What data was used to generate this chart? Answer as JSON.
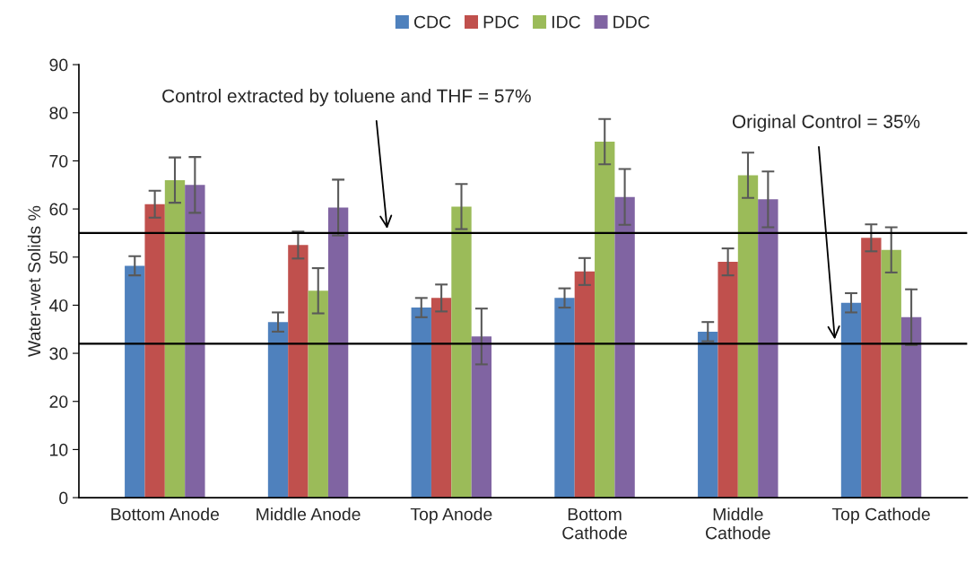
{
  "chart_data": {
    "type": "bar",
    "ylabel": "Water-wet Solids %",
    "categories": [
      "Bottom Anode",
      "Middle Anode",
      "Top Anode",
      "Bottom Cathode",
      "Middle Cathode",
      "Top Cathode"
    ],
    "series": [
      {
        "name": "CDC",
        "color": "#4f81bd",
        "values": [
          48.2,
          36.5,
          39.5,
          41.5,
          34.5,
          40.5
        ],
        "errors": [
          2,
          2,
          2,
          2,
          2,
          2
        ]
      },
      {
        "name": "PDC",
        "color": "#c0504d",
        "values": [
          61,
          52.5,
          41.5,
          47,
          49,
          54
        ],
        "errors": [
          2.8,
          2.8,
          2.8,
          2.8,
          2.8,
          2.8
        ]
      },
      {
        "name": "IDC",
        "color": "#9bbb59",
        "values": [
          66,
          43,
          60.5,
          74,
          67,
          51.5
        ],
        "errors": [
          4.7,
          4.7,
          4.7,
          4.7,
          4.7,
          4.7
        ]
      },
      {
        "name": "DDC",
        "color": "#8064a2",
        "values": [
          65,
          60.3,
          33.5,
          62.5,
          62,
          37.5
        ],
        "errors": [
          5.8,
          5.8,
          5.8,
          5.8,
          5.8,
          5.8
        ]
      }
    ],
    "ylim": [
      0,
      90
    ],
    "yticks": [
      0,
      10,
      20,
      30,
      40,
      50,
      60,
      70,
      80,
      90
    ],
    "ref_lines": [
      {
        "axis": "y",
        "value": 55,
        "color": "#000000"
      },
      {
        "axis": "y",
        "value": 32,
        "color": "#000000"
      }
    ],
    "annotations": [
      "Control extracted by toluene and THF = 57%",
      "Original Control = 35%"
    ],
    "grid": false,
    "legend": "top"
  }
}
